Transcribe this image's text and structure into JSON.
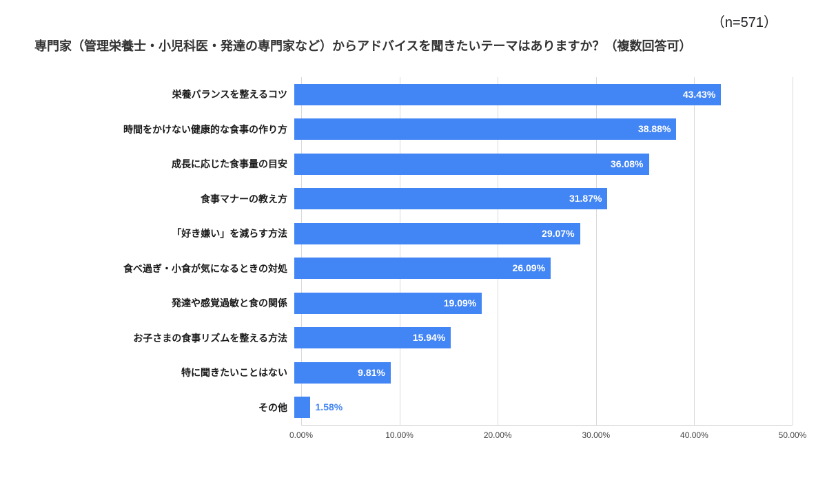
{
  "header": {
    "sample_size": "（n=571）",
    "title": "専門家（管理栄養士・小児科医・発達の専門家など）からアドバイスを聞きたいテーマはありますか？（複数回答可）"
  },
  "chart_data": {
    "type": "bar",
    "orientation": "horizontal",
    "title": "専門家（管理栄養士・小児科医・発達の専門家など）からアドバイスを聞きたいテーマはありますか？（複数回答可）",
    "sample_size_note": "（n=571）",
    "categories": [
      "栄養バランスを整えるコツ",
      "時間をかけない健康的な食事の作り方",
      "成長に応じた食事量の目安",
      "食事マナーの教え方",
      "「好き嫌い」を減らす方法",
      "食べ過ぎ・小食が気になるときの対処",
      "発達や感覚過敏と食の関係",
      "お子さまの食事リズムを整える方法",
      "特に聞きたいことはない",
      "その他"
    ],
    "values": [
      43.43,
      38.88,
      36.08,
      31.87,
      29.07,
      26.09,
      19.09,
      15.94,
      9.81,
      1.58
    ],
    "value_labels": [
      "43.43%",
      "38.88%",
      "36.08%",
      "31.87%",
      "29.07%",
      "26.09%",
      "19.09%",
      "15.94%",
      "9.81%",
      "1.58%"
    ],
    "xlim": [
      0,
      50
    ],
    "x_ticks": [
      "0.00%",
      "10.00%",
      "20.00%",
      "30.00%",
      "40.00%",
      "50.00%"
    ],
    "x_tick_values": [
      0,
      10,
      20,
      30,
      40,
      50
    ],
    "grid": true,
    "legend_position": "none",
    "bar_color": "#4285f4",
    "label_inside_color": "#ffffff",
    "label_outside_color": "#4285f4",
    "label_outside_threshold": 5
  }
}
